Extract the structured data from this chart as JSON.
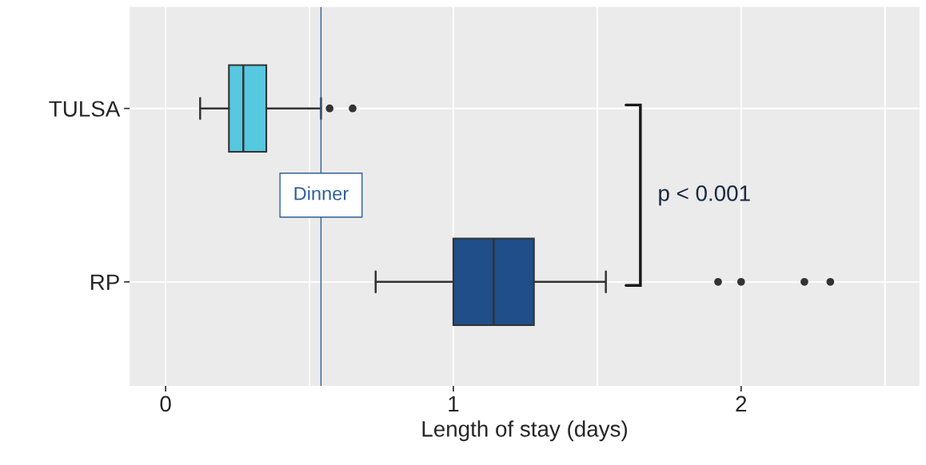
{
  "chart_data": {
    "type": "box",
    "orientation": "horizontal",
    "xlabel": "Length of stay (days)",
    "categories": [
      "TULSA",
      "RP"
    ],
    "series": [
      {
        "color": "#56c8e0",
        "boxes": [
          {
            "low": 0.12,
            "q1": 0.22,
            "median": 0.27,
            "q3": 0.35,
            "high": 0.54,
            "outliers": [
              0.57,
              0.65
            ]
          },
          null
        ]
      },
      {
        "color": "#1f4e89",
        "boxes": [
          null,
          {
            "low": 0.73,
            "q1": 1.0,
            "median": 1.14,
            "q3": 1.28,
            "high": 1.53,
            "outliers": [
              1.92,
              2.0,
              2.22,
              2.31
            ]
          }
        ]
      }
    ],
    "xlim": [
      -0.125,
      2.62
    ],
    "xticks": [
      0,
      {
        "value": 0.5,
        "label": null
      },
      1,
      {
        "value": 1.5,
        "label": null
      },
      2,
      {
        "value": 2.5,
        "label": null
      }
    ],
    "grid": true,
    "ref_lines": [
      {
        "axis": "x",
        "value": 0.54,
        "label": "Dinner",
        "color": "#2f5f9a"
      }
    ],
    "annotations": [
      "p < 0.001"
    ]
  }
}
